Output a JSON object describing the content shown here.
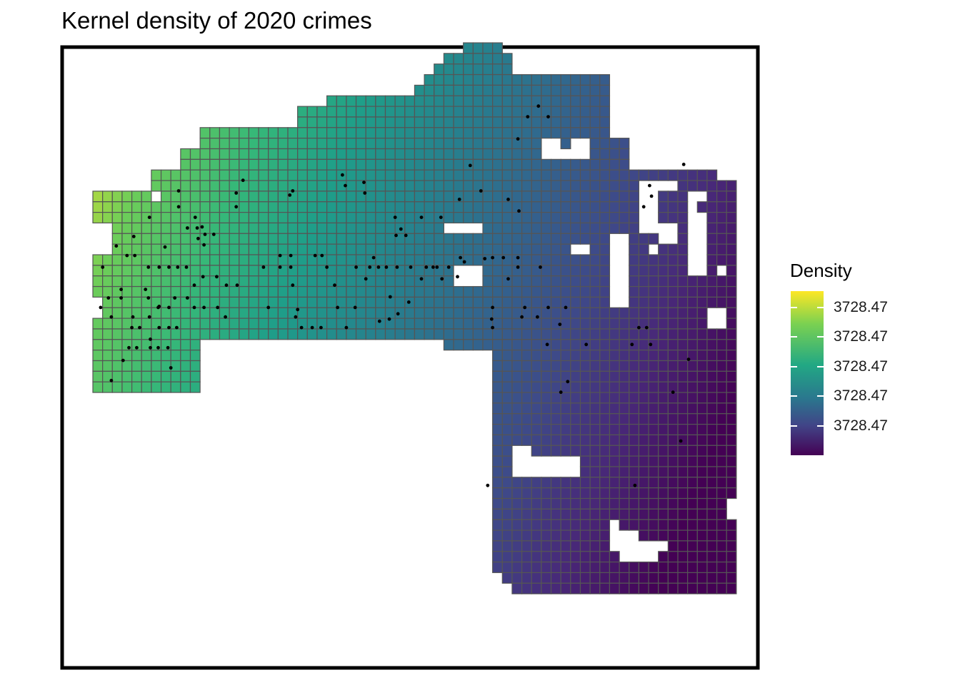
{
  "chart_data": {
    "type": "heatmap",
    "title": "Kernel density of 2020 crimes",
    "legend": {
      "title": "Density",
      "placement": "right",
      "labels": [
        "3728.47",
        "3728.47",
        "3728.47",
        "3728.47",
        "3728.47"
      ],
      "tick_fractions": [
        0.1,
        0.28,
        0.46,
        0.64,
        0.82
      ],
      "colormap": "viridis"
    },
    "grid_lines": true,
    "panel_border": true,
    "points_color": "#000000",
    "cells_rows": [
      {
        "row": 0,
        "from": 38,
        "to": 41
      },
      {
        "row": 1,
        "from": 36,
        "to": 42
      },
      {
        "row": 2,
        "from": 35,
        "to": 42
      },
      {
        "row": 3,
        "from": 34,
        "to": 52
      },
      {
        "row": 4,
        "from": 33,
        "to": 52
      },
      {
        "row": 5,
        "from": 24,
        "to": 52
      },
      {
        "row": 6,
        "from": 21,
        "to": 52
      },
      {
        "row": 7,
        "from": 21,
        "to": 52
      },
      {
        "row": 8,
        "from": 11,
        "to": 52
      },
      {
        "row": 9,
        "from": 11,
        "to": 54
      },
      {
        "row": 10,
        "from": 9,
        "to": 54
      },
      {
        "row": 11,
        "from": 9,
        "to": 54
      },
      {
        "row": 12,
        "from": 6,
        "to": 63
      },
      {
        "row": 13,
        "from": 6,
        "to": 65
      },
      {
        "row": 14,
        "from": 0,
        "to": 65
      },
      {
        "row": 15,
        "from": 0,
        "to": 65
      },
      {
        "row": 16,
        "from": 0,
        "to": 65
      },
      {
        "row": 17,
        "from": 2,
        "to": 65
      },
      {
        "row": 18,
        "from": 2,
        "to": 65
      },
      {
        "row": 19,
        "from": 2,
        "to": 65
      },
      {
        "row": 20,
        "from": 0,
        "to": 65
      },
      {
        "row": 21,
        "from": 0,
        "to": 65
      },
      {
        "row": 22,
        "from": 0,
        "to": 65
      },
      {
        "row": 23,
        "from": 0,
        "to": 65
      },
      {
        "row": 24,
        "from": 1,
        "to": 65
      },
      {
        "row": 25,
        "from": 1,
        "to": 65
      },
      {
        "row": 26,
        "from": 0,
        "to": 65
      },
      {
        "row": 27,
        "from": 0,
        "to": 65
      },
      {
        "row": 28,
        "from": 0,
        "to": 10
      },
      {
        "row": 28,
        "from": 34,
        "to": 65
      },
      {
        "row": 29,
        "from": 0,
        "to": 10
      },
      {
        "row": 29,
        "from": 41,
        "to": 65
      },
      {
        "row": 30,
        "from": 0,
        "to": 10
      },
      {
        "row": 30,
        "from": 41,
        "to": 65
      },
      {
        "row": 31,
        "from": 0,
        "to": 10
      },
      {
        "row": 31,
        "from": 41,
        "to": 65
      },
      {
        "row": 32,
        "from": 0,
        "to": 10
      },
      {
        "row": 32,
        "from": 41,
        "to": 65
      },
      {
        "row": 33,
        "from": 41,
        "to": 65
      },
      {
        "row": 34,
        "from": 41,
        "to": 65
      },
      {
        "row": 35,
        "from": 41,
        "to": 65
      },
      {
        "row": 36,
        "from": 41,
        "to": 65
      },
      {
        "row": 37,
        "from": 41,
        "to": 65
      },
      {
        "row": 38,
        "from": 41,
        "to": 65
      },
      {
        "row": 39,
        "from": 41,
        "to": 65
      },
      {
        "row": 40,
        "from": 41,
        "to": 65
      },
      {
        "row": 41,
        "from": 41,
        "to": 65
      },
      {
        "row": 42,
        "from": 41,
        "to": 65
      },
      {
        "row": 43,
        "from": 41,
        "to": 64
      },
      {
        "row": 44,
        "from": 41,
        "to": 64
      },
      {
        "row": 45,
        "from": 41,
        "to": 65
      },
      {
        "row": 46,
        "from": 41,
        "to": 65
      },
      {
        "row": 47,
        "from": 41,
        "to": 65
      },
      {
        "row": 48,
        "from": 41,
        "to": 65
      },
      {
        "row": 49,
        "from": 41,
        "to": 65
      },
      {
        "row": 50,
        "from": 42,
        "to": 65
      },
      {
        "row": 51,
        "from": 43,
        "to": 65
      }
    ],
    "holes": [
      {
        "row": 14,
        "col": 6
      },
      {
        "row": 28,
        "col": 34
      },
      {
        "row": 28,
        "col": 35
      }
    ],
    "hole_rects": [
      {
        "r0": 9,
        "r1": 10,
        "c0": 46,
        "c1": 47
      },
      {
        "r0": 9,
        "r1": 10,
        "c0": 49,
        "c1": 50
      },
      {
        "r0": 10,
        "r1": 10,
        "c0": 48,
        "c1": 48
      },
      {
        "r0": 13,
        "r1": 17,
        "c0": 56,
        "c1": 57
      },
      {
        "r0": 13,
        "r1": 13,
        "c0": 58,
        "c1": 59
      },
      {
        "r0": 14,
        "r1": 17,
        "c0": 57,
        "c1": 57
      },
      {
        "r0": 14,
        "r1": 14,
        "c0": 61,
        "c1": 62
      },
      {
        "r0": 15,
        "r1": 15,
        "c0": 61,
        "c1": 61
      },
      {
        "r0": 17,
        "r1": 18,
        "c0": 58,
        "c1": 59
      },
      {
        "r0": 19,
        "r1": 19,
        "c0": 57,
        "c1": 57
      },
      {
        "r0": 16,
        "r1": 21,
        "c0": 61,
        "c1": 62
      },
      {
        "r0": 17,
        "r1": 17,
        "c0": 36,
        "c1": 39
      },
      {
        "r0": 18,
        "r1": 20,
        "c0": 53,
        "c1": 53
      },
      {
        "r0": 19,
        "r1": 19,
        "c0": 49,
        "c1": 50
      },
      {
        "r0": 21,
        "r1": 21,
        "c0": 64,
        "c1": 64
      },
      {
        "r0": 18,
        "r1": 24,
        "c0": 53,
        "c1": 54
      },
      {
        "r0": 21,
        "r1": 22,
        "c0": 37,
        "c1": 39
      },
      {
        "r0": 25,
        "r1": 26,
        "c0": 63,
        "c1": 64
      },
      {
        "r0": 38,
        "r1": 39,
        "c0": 43,
        "c1": 44
      },
      {
        "r0": 39,
        "r1": 40,
        "c0": 43,
        "c1": 49
      },
      {
        "r0": 45,
        "r1": 46,
        "c0": 53,
        "c1": 53
      },
      {
        "r0": 46,
        "r1": 47,
        "c0": 53,
        "c1": 55
      },
      {
        "r0": 47,
        "r1": 48,
        "c0": 54,
        "c1": 57
      },
      {
        "r0": 47,
        "r1": 47,
        "c0": 58,
        "c1": 58
      }
    ],
    "points": [
      [
        45.7,
        5.3
      ],
      [
        44.6,
        6.3
      ],
      [
        46.7,
        6.3
      ],
      [
        43.6,
        8.4
      ],
      [
        38.7,
        10.9
      ],
      [
        39.8,
        13.3
      ],
      [
        37.6,
        14.1
      ],
      [
        42.6,
        14.1
      ],
      [
        43.7,
        15.2
      ],
      [
        25.6,
        11.8
      ],
      [
        25.9,
        12.8
      ],
      [
        15.4,
        12.3
      ],
      [
        20.5,
        13.3
      ],
      [
        14.7,
        13.5
      ],
      [
        14.7,
        14.8
      ],
      [
        20.2,
        13.7
      ],
      [
        8.8,
        13.3
      ],
      [
        8.8,
        14.8
      ],
      [
        10.5,
        15.8
      ],
      [
        11.2,
        16.7
      ],
      [
        12.4,
        17.4
      ],
      [
        11.5,
        17.4
      ],
      [
        10.7,
        16.8
      ],
      [
        9.7,
        16.8
      ],
      [
        10.8,
        17.8
      ],
      [
        11.4,
        18.4
      ],
      [
        4.2,
        17.6
      ],
      [
        5.8,
        15.8
      ],
      [
        7.4,
        18.6
      ],
      [
        2.4,
        18.5
      ],
      [
        3.5,
        19.4
      ],
      [
        4.3,
        19.4
      ],
      [
        1.0,
        20.5
      ],
      [
        5.7,
        20.5
      ],
      [
        6.8,
        20.5
      ],
      [
        7.8,
        20.5
      ],
      [
        8.7,
        20.5
      ],
      [
        9.6,
        20.5
      ],
      [
        11.3,
        21.4
      ],
      [
        12.7,
        21.4
      ],
      [
        13.7,
        22.2
      ],
      [
        14.8,
        22.2
      ],
      [
        10.4,
        22.2
      ],
      [
        9.7,
        23.4
      ],
      [
        8.4,
        23.4
      ],
      [
        7.8,
        24.3
      ],
      [
        6.8,
        24.2
      ],
      [
        5.7,
        23.4
      ],
      [
        5.4,
        22.6
      ],
      [
        2.9,
        22.6
      ],
      [
        2.9,
        23.4
      ],
      [
        1.6,
        23.4
      ],
      [
        0.8,
        24.3
      ],
      [
        1.9,
        25.2
      ],
      [
        4.1,
        25.2
      ],
      [
        5.8,
        25.2
      ],
      [
        6.7,
        24.3
      ],
      [
        10.4,
        24.3
      ],
      [
        11.4,
        24.3
      ],
      [
        12.8,
        24.3
      ],
      [
        13.6,
        25.2
      ],
      [
        4.0,
        26.2
      ],
      [
        4.8,
        26.2
      ],
      [
        6.8,
        26.2
      ],
      [
        7.8,
        26.2
      ],
      [
        8.6,
        26.2
      ],
      [
        5.9,
        27.3
      ],
      [
        7.7,
        28.1
      ],
      [
        6.7,
        28.1
      ],
      [
        5.9,
        28.1
      ],
      [
        3.7,
        28.1
      ],
      [
        4.5,
        28.1
      ],
      [
        3.1,
        29.3
      ],
      [
        1.9,
        31.2
      ],
      [
        8.0,
        30.0
      ],
      [
        17.5,
        20.5
      ],
      [
        19.2,
        20.5
      ],
      [
        20.3,
        20.5
      ],
      [
        20.5,
        22.2
      ],
      [
        21.0,
        24.5
      ],
      [
        20.8,
        25.2
      ],
      [
        18.0,
        24.3
      ],
      [
        21.4,
        26.2
      ],
      [
        22.5,
        26.2
      ],
      [
        23.4,
        26.2
      ],
      [
        26.0,
        26.2
      ],
      [
        25.1,
        24.3
      ],
      [
        24.8,
        22.2
      ],
      [
        24.0,
        20.5
      ],
      [
        23.5,
        19.4
      ],
      [
        22.8,
        19.4
      ],
      [
        20.3,
        19.4
      ],
      [
        19.2,
        19.4
      ],
      [
        27.0,
        20.5
      ],
      [
        28.4,
        20.5
      ],
      [
        29.3,
        20.5
      ],
      [
        30.1,
        20.5
      ],
      [
        31.2,
        20.5
      ],
      [
        32.6,
        20.5
      ],
      [
        34.2,
        20.5
      ],
      [
        35.3,
        20.5
      ],
      [
        35.8,
        21.6
      ],
      [
        37.4,
        21.4
      ],
      [
        33.7,
        21.6
      ],
      [
        28.0,
        21.6
      ],
      [
        30.5,
        23.3
      ],
      [
        32.4,
        23.8
      ],
      [
        31.3,
        24.9
      ],
      [
        30.4,
        25.4
      ],
      [
        29.4,
        25.6
      ],
      [
        26.9,
        24.3
      ],
      [
        28.8,
        19.6
      ],
      [
        31.1,
        17.5
      ],
      [
        32.1,
        17.5
      ],
      [
        31.6,
        16.9
      ],
      [
        31.0,
        15.8
      ],
      [
        33.7,
        15.8
      ],
      [
        35.7,
        15.8
      ],
      [
        34.9,
        20.5
      ],
      [
        36.5,
        20.5
      ],
      [
        37.7,
        19.6
      ],
      [
        41.0,
        19.6
      ],
      [
        42.1,
        19.6
      ],
      [
        43.6,
        19.6
      ],
      [
        43.6,
        20.5
      ],
      [
        45.9,
        20.5
      ],
      [
        42.6,
        21.6
      ],
      [
        41.0,
        24.3
      ],
      [
        40.9,
        25.4
      ],
      [
        41.0,
        26.2
      ],
      [
        44.0,
        25.2
      ],
      [
        44.3,
        24.3
      ],
      [
        45.6,
        25.2
      ],
      [
        46.7,
        24.3
      ],
      [
        48.5,
        24.3
      ],
      [
        47.9,
        25.9
      ],
      [
        46.6,
        27.8
      ],
      [
        50.6,
        27.8
      ],
      [
        55.3,
        27.8
      ],
      [
        57.2,
        27.8
      ],
      [
        56.8,
        26.2
      ],
      [
        56.0,
        26.2
      ],
      [
        61.1,
        29.2
      ],
      [
        48.7,
        31.3
      ],
      [
        48.0,
        32.3
      ],
      [
        59.5,
        32.3
      ],
      [
        60.3,
        36.9
      ],
      [
        40.5,
        41.1
      ],
      [
        55.6,
        41.1
      ],
      [
        38.1,
        20.0
      ],
      [
        40.2,
        19.7
      ],
      [
        27.9,
        13.5
      ],
      [
        27.8,
        12.5
      ],
      [
        56.5,
        14.8
      ],
      [
        57.3,
        13.8
      ],
      [
        60.6,
        10.8
      ],
      [
        57.1,
        12.8
      ]
    ]
  }
}
